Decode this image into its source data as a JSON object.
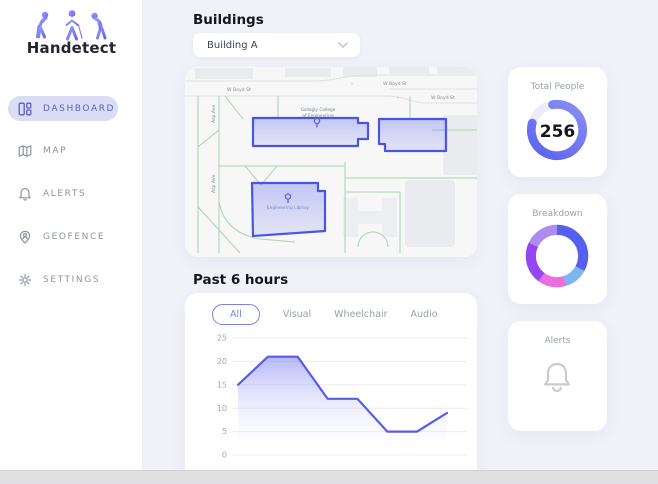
{
  "app": {
    "name": "Handetect",
    "logo_icon": "three-accessibility-figures"
  },
  "colors": {
    "accent": "#575ee4",
    "accent_pill": "#dbddf6",
    "accent_text": "#585fc2",
    "background": "#f1f2f8",
    "card": "#ffffff",
    "nav_text": "#8d93a1",
    "geofence_stroke": "#4a55e0",
    "geofence_fill": "rgba(113,120,242,0.32)",
    "map_path_green": "#abd2b4",
    "map_building_gray": "#e9ebee",
    "bottom_bar": "#e0e0e3"
  },
  "sidebar": {
    "items": [
      {
        "label": "DASHBOARD",
        "icon": "dashboard-grid-icon",
        "active": true
      },
      {
        "label": "MAP",
        "icon": "map-icon",
        "active": false
      },
      {
        "label": "ALERTS",
        "icon": "bell-icon",
        "active": false
      },
      {
        "label": "GEOFENCE",
        "icon": "person-pin-icon",
        "active": false
      },
      {
        "label": "SETTINGS",
        "icon": "gear-icon",
        "active": false
      }
    ]
  },
  "buildings": {
    "heading": "Buildings",
    "selected": "Building A"
  },
  "map": {
    "street_label": "W Boyd St",
    "separator": "–",
    "avenue_label": "Asp Ave",
    "buildings": [
      {
        "name": "Gallogly College of Engineering",
        "name_lines": [
          "Gallogly College",
          "of Engineering"
        ]
      },
      {
        "name": "Engineering Library"
      }
    ],
    "geofence_count": 3
  },
  "past6": {
    "heading": "Past 6 hours",
    "tabs": [
      {
        "label": "All",
        "active": true
      },
      {
        "label": "Visual",
        "active": false
      },
      {
        "label": "Wheelchair",
        "active": false
      },
      {
        "label": "Audio",
        "active": false
      }
    ]
  },
  "chart_data": {
    "type": "area",
    "title": "Past 6 hours",
    "values": [
      15,
      21,
      21,
      12,
      12,
      5,
      5,
      9
    ],
    "yticks": [
      0,
      5,
      10,
      15,
      20,
      25
    ],
    "ylim": [
      0,
      25
    ],
    "grid": "horizontal",
    "line_color": "#575ee4",
    "fill_gradient_top": "rgba(113,117,240,0.52)",
    "fill_gradient_bottom": "rgba(255,255,255,0)"
  },
  "cards": {
    "total_people": {
      "title": "Total People",
      "value": "256",
      "progress": 0.82,
      "ring_colors": [
        "#5a62ee",
        "#8a8ef5"
      ],
      "track_color": "#ecedf7"
    },
    "breakdown": {
      "title": "Breakdown",
      "segments": [
        {
          "name": "indigo",
          "color": "#5561ee",
          "pct": 33
        },
        {
          "name": "sky-blue",
          "color": "#7fb4ec",
          "pct": 12
        },
        {
          "name": "pink",
          "color": "#ec6edd",
          "pct": 15
        },
        {
          "name": "violet",
          "color": "#9645f2",
          "pct": 22
        },
        {
          "name": "lavender",
          "color": "#ad8cf2",
          "pct": 18
        }
      ]
    },
    "alerts": {
      "title": "Alerts",
      "icon": "bell-icon"
    }
  }
}
